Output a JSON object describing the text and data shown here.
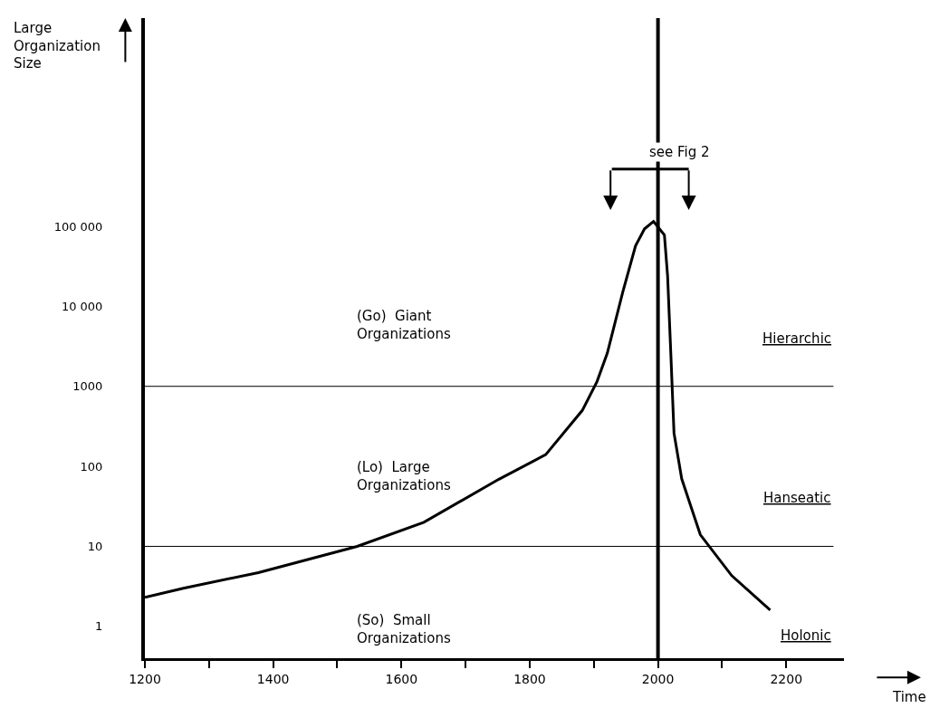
{
  "chart_data": {
    "type": "line",
    "title": null,
    "xlabel": "Time",
    "ylabel": "Large Organization Size",
    "x": [
      1200,
      1260,
      1377,
      1531,
      1635,
      1752,
      1825,
      1882,
      1905,
      1921,
      1945,
      1965,
      1979,
      1993,
      2010,
      2015,
      2020,
      2025,
      2037,
      2066,
      2115,
      2175
    ],
    "series": [
      {
        "color": "#000000",
        "values": [
          2.3,
          3.0,
          4.7,
          10,
          20,
          69,
          140,
          500,
          1150,
          2600,
          15000,
          57000,
          93000,
          115000,
          78000,
          24000,
          2600,
          260,
          70,
          14,
          4.3,
          1.6
        ]
      }
    ],
    "log": "y",
    "xlim": [
      1200,
      2290
    ],
    "ylim": [
      0.4,
      40000000
    ],
    "xticks": [
      1200,
      {
        "value": 1300,
        "label": null
      },
      1400,
      {
        "value": 1500,
        "label": null
      },
      1600,
      {
        "value": 1700,
        "label": null
      },
      1800,
      {
        "value": 1900,
        "label": null
      },
      2000,
      {
        "value": 2100,
        "label": null
      },
      2200
    ],
    "yticks": [
      1,
      10,
      100,
      1000,
      {
        "value": 10000,
        "label": "10 000"
      },
      {
        "value": 100000,
        "label": "100 000"
      }
    ],
    "ref_lines": [
      {
        "axis": "y",
        "value": 10,
        "color": "#000000"
      },
      {
        "axis": "y",
        "value": 1000,
        "color": "#000000"
      },
      {
        "axis": "x",
        "value": 2000,
        "color": "#000000"
      }
    ],
    "annotations": [
      "see Fig 2",
      "(Go)  Giant\nOrganizations",
      "(Lo)  Large\nOrganizations",
      "(So)  Small\nOrganizations",
      "Hierarchic",
      "Hanseatic",
      "Holonic"
    ],
    "grid": false,
    "marker": "none",
    "line_style": "solid"
  }
}
